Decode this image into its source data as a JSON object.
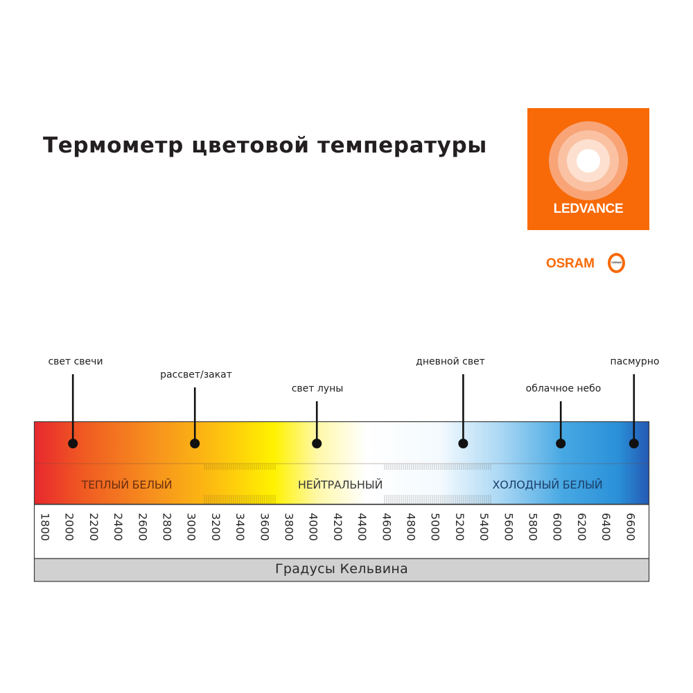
{
  "title": "Термометр цветовой температуры",
  "brand": {
    "logo_text": "LEDVANCE",
    "sub_brand": "OSRAM",
    "sub_brand_ring_text": "OSRAM",
    "accent_color": "#f76a07"
  },
  "markers": [
    {
      "label": "свет свечи",
      "kelvin": 2000
    },
    {
      "label": "рассвет/закат",
      "kelvin": 3000
    },
    {
      "label": "свет луны",
      "kelvin": 4000
    },
    {
      "label": "дневной свет",
      "kelvin": 5200
    },
    {
      "label": "облачное небо",
      "kelvin": 6000
    },
    {
      "label": "пасмурно",
      "kelvin": 6600
    }
  ],
  "bands": [
    {
      "label": "ТЕПЛЫЙ БЕЛЫЙ"
    },
    {
      "label": "НЕЙТРАЛЬНЫЙ"
    },
    {
      "label": "ХОЛОДНЫЙ БЕЛЫЙ"
    }
  ],
  "ticks": [
    "1800",
    "2000",
    "2200",
    "2400",
    "2600",
    "2800",
    "3000",
    "3200",
    "3400",
    "3600",
    "3800",
    "4000",
    "4200",
    "4400",
    "4600",
    "4800",
    "5000",
    "5200",
    "5400",
    "5600",
    "5800",
    "6000",
    "6200",
    "6400",
    "6600"
  ],
  "axis_caption": "Градусы Кельвина"
}
